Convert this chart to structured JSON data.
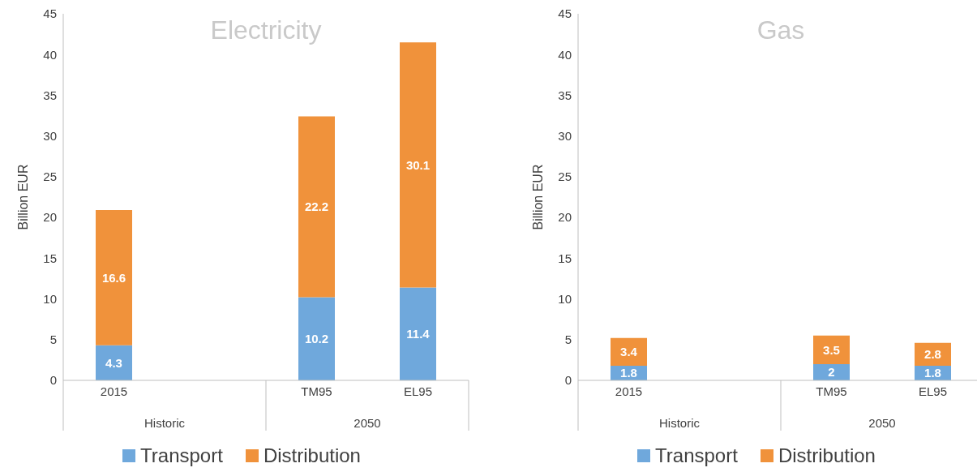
{
  "chart_data": [
    {
      "type": "bar",
      "title": "Electricity",
      "ylabel": "Billion EUR",
      "categories": [
        "2015",
        null,
        "TM95",
        "EL95"
      ],
      "stacked": true,
      "data_labels": true,
      "legend": "bottom",
      "grid": false,
      "ylim": [
        0,
        45
      ],
      "yticks": [
        0,
        5,
        10,
        15,
        20,
        25,
        30,
        35,
        40,
        45
      ],
      "series": [
        {
          "name": "Transport",
          "color": "#6fa8dc",
          "values": [
            4.3,
            null,
            10.2,
            11.4
          ]
        },
        {
          "name": "Distribution",
          "color": "#f0923b",
          "values": [
            16.6,
            null,
            22.2,
            30.1
          ]
        }
      ],
      "annotations": [
        "Historic",
        "2050"
      ]
    },
    {
      "type": "bar",
      "title": "Gas",
      "ylabel": "Billion EUR",
      "categories": [
        "2015",
        null,
        "TM95",
        "EL95"
      ],
      "stacked": true,
      "data_labels": true,
      "legend": "bottom",
      "grid": false,
      "ylim": [
        0,
        45
      ],
      "yticks": [
        0,
        5,
        10,
        15,
        20,
        25,
        30,
        35,
        40,
        45
      ],
      "series": [
        {
          "name": "Transport",
          "color": "#6fa8dc",
          "values": [
            1.8,
            null,
            2,
            1.8
          ]
        },
        {
          "name": "Distribution",
          "color": "#f0923b",
          "values": [
            3.4,
            null,
            3.5,
            2.8
          ]
        }
      ],
      "annotations": [
        "Historic",
        "2050"
      ]
    }
  ]
}
